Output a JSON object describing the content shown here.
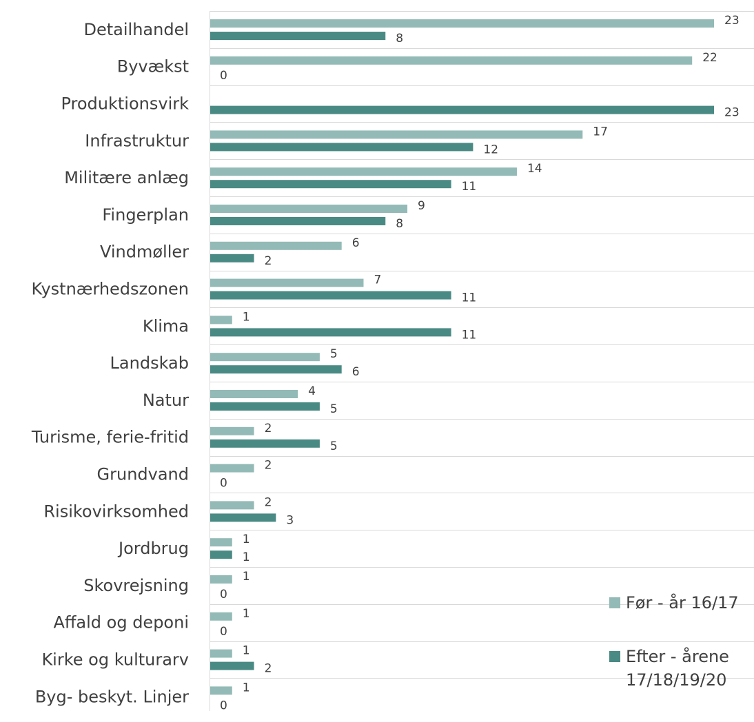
{
  "chart_data": {
    "type": "bar",
    "orientation": "horizontal",
    "categories": [
      "Detailhandel",
      "Byvækst",
      "Produktionsvirk",
      "Infrastruktur",
      "Militære anlæg",
      "Fingerplan",
      "Vindmøller",
      "Kystnærhedszonen",
      "Klima",
      "Landskab",
      "Natur",
      "Turisme, ferie-fritid",
      "Grundvand",
      "Risikovirksomhed",
      "Jordbrug",
      "Skovrejsning",
      "Affald og deponi",
      "Kirke og kulturarv",
      "Byg- beskyt. Linjer"
    ],
    "series": [
      {
        "name": "Før - år 16/17",
        "color": "#93bab6",
        "values": [
          23,
          22,
          null,
          17,
          14,
          9,
          6,
          7,
          1,
          5,
          4,
          2,
          2,
          2,
          1,
          1,
          1,
          1,
          1
        ]
      },
      {
        "name": "Efter - årene 17/18/19/20",
        "color": "#4a8a84",
        "values": [
          8,
          0,
          23,
          12,
          11,
          8,
          2,
          11,
          11,
          6,
          5,
          5,
          0,
          3,
          1,
          0,
          0,
          2,
          0
        ]
      }
    ],
    "xlim": [
      0,
      23
    ],
    "grid": true,
    "legend_position": "bottom-right"
  },
  "legend": {
    "item1": {
      "line1": "Før - år 16/17",
      "line2": ""
    },
    "item2": {
      "line1": "Efter - årene",
      "line2": "17/18/19/20"
    }
  }
}
